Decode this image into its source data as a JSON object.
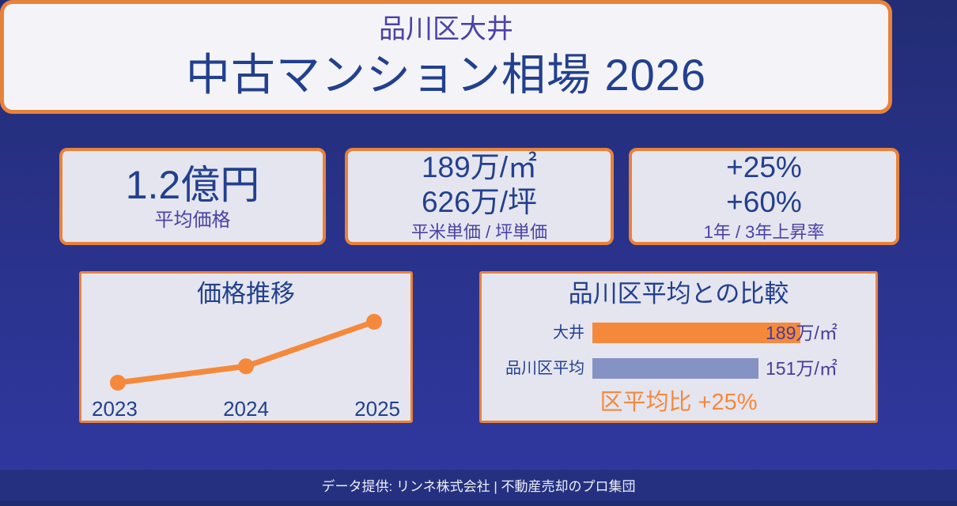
{
  "colors": {
    "accent_orange": "#f5893b",
    "border_orange": "#e8823a",
    "dark_blue_text": "#22408f",
    "purple_text": "#4a42a8",
    "bar_gray_blue": "#8592c4",
    "background_top": "#222d75",
    "background_bottom": "#30389e",
    "card_background": "#e5e5ef",
    "header_card_background": "#f4f4f8",
    "footer_background": "#253180"
  },
  "header": {
    "subtitle": "品川区大井",
    "title": "中古マンション相場 2026"
  },
  "stats": [
    {
      "line1": "1.2億円",
      "caption": "平均価格"
    },
    {
      "line1": "189万/㎡",
      "line2": "626万/坪",
      "caption": "平米単価 / 坪単価"
    },
    {
      "line1": "+25%",
      "line2": "+60%",
      "caption": "1年 / 3年上昇率"
    }
  ],
  "chart_data": [
    {
      "type": "line",
      "title": "価格推移",
      "x": [
        "2023",
        "2024",
        "2025"
      ],
      "values": [
        137,
        151,
        189
      ],
      "unit": "万/㎡",
      "ylim": [
        130,
        195
      ],
      "grid": false,
      "legend": false,
      "line_color": "#f5893b"
    },
    {
      "type": "bar",
      "orientation": "horizontal",
      "title": "品川区平均との比較",
      "categories": [
        "大井",
        "品川区平均"
      ],
      "values": [
        189,
        151
      ],
      "value_labels": [
        "189万/㎡",
        "151万/㎡"
      ],
      "bar_colors": [
        "#f5893b",
        "#8592c4"
      ],
      "xlim": [
        0,
        195
      ],
      "note": "区平均比 +25%",
      "unit": "万/㎡"
    }
  ],
  "footer": {
    "text": "データ提供: リンネ株式会社 | 不動産売却のプロ集団"
  }
}
